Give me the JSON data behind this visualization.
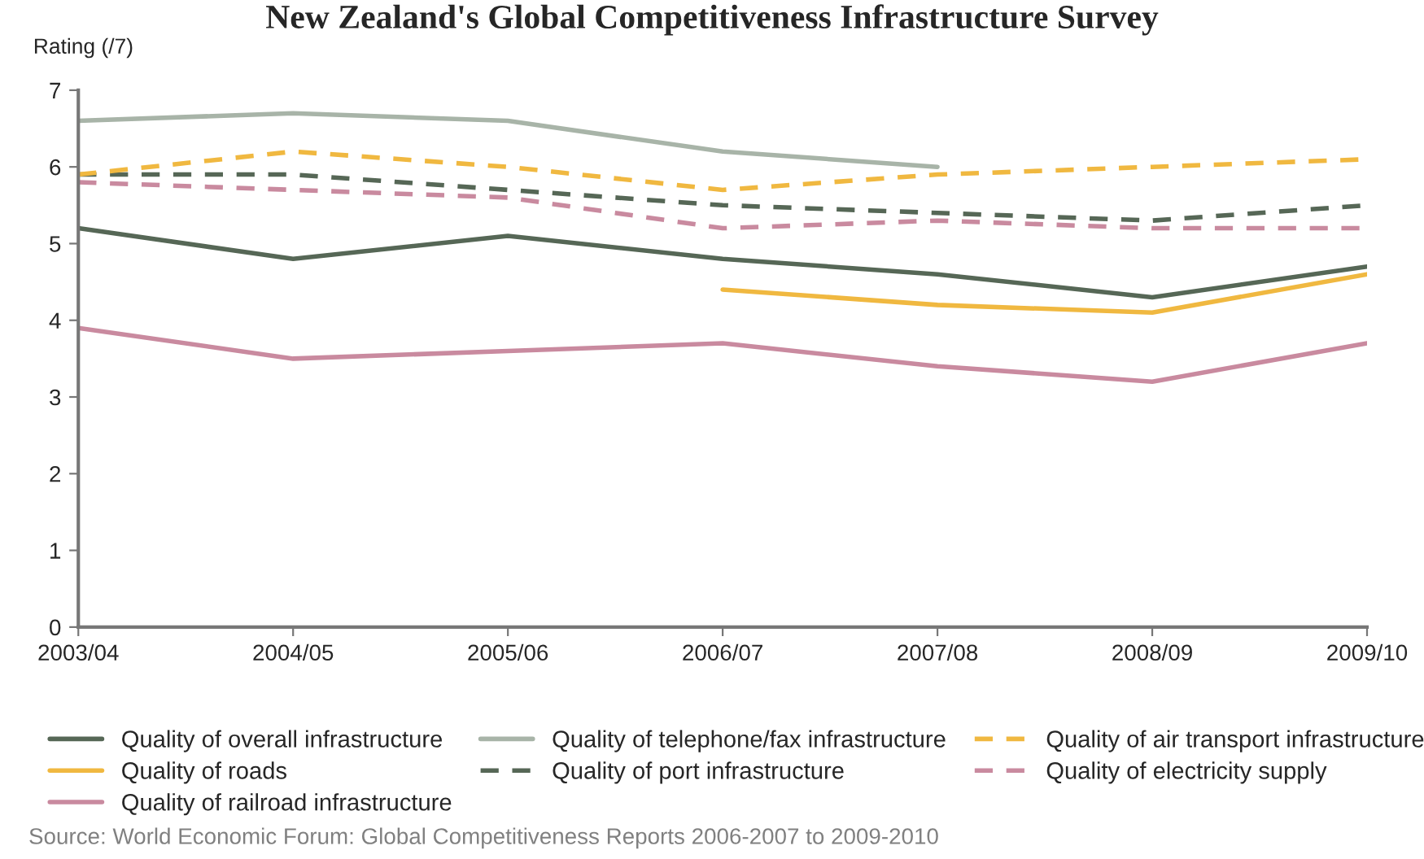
{
  "chart_data": {
    "type": "line",
    "title": "New Zealand's Global Competitiveness Infrastructure Survey",
    "ylabel": "Rating (/7)",
    "categories": [
      "2003/04",
      "2004/05",
      "2005/06",
      "2006/07",
      "2007/08",
      "2008/09",
      "2009/10"
    ],
    "series": [
      {
        "name": "Quality of overall infrastructure",
        "color": "#566756",
        "line_style": "solid",
        "values": [
          5.2,
          4.8,
          5.1,
          4.8,
          4.6,
          4.3,
          4.7
        ]
      },
      {
        "name": "Quality of roads",
        "color": "#f0b840",
        "line_style": "solid",
        "values": [
          null,
          null,
          null,
          4.4,
          4.2,
          4.1,
          4.6
        ]
      },
      {
        "name": "Quality of railroad infrastructure",
        "color": "#c98a9f",
        "line_style": "solid",
        "values": [
          3.9,
          3.5,
          3.6,
          3.7,
          3.4,
          3.2,
          3.7
        ]
      },
      {
        "name": "Quality of telephone/fax infrastructure",
        "color": "#a8b4a8",
        "line_style": "solid",
        "values": [
          6.6,
          6.7,
          6.6,
          6.2,
          6.0,
          null,
          null
        ]
      },
      {
        "name": "Quality of port infrastructure",
        "color": "#566756",
        "line_style": "dashed",
        "values": [
          5.9,
          5.9,
          5.7,
          5.5,
          5.4,
          5.3,
          5.5
        ]
      },
      {
        "name": "Quality of air transport infrastructure",
        "color": "#f0b840",
        "line_style": "dashed",
        "values": [
          5.9,
          6.2,
          6.0,
          5.7,
          5.9,
          6.0,
          6.1
        ]
      },
      {
        "name": "Quality of electricity supply",
        "color": "#c98a9f",
        "line_style": "dashed",
        "values": [
          5.8,
          5.7,
          5.6,
          5.2,
          5.3,
          5.2,
          5.2
        ]
      }
    ],
    "ylim": [
      0,
      7
    ],
    "yticks": [
      0,
      1,
      2,
      3,
      4,
      5,
      6,
      7
    ],
    "grid": false,
    "legend": "bottom",
    "marker": "none",
    "annotations": [
      "Source: World Economic Forum: Global Competitiveness Reports 2006-2007 to 2009-2010"
    ]
  }
}
